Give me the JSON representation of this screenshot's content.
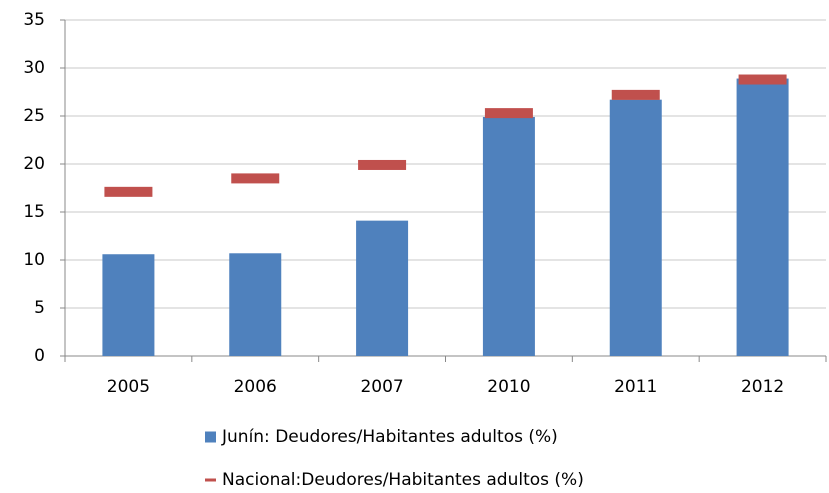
{
  "chart_data": {
    "type": "bar",
    "categories": [
      "2005",
      "2006",
      "2007",
      "2010",
      "2011",
      "2012"
    ],
    "series": [
      {
        "name": "Junín: Deudores/Habitantes adultos (%)",
        "color": "#4f81bd",
        "values": [
          10.6,
          10.7,
          14.1,
          24.9,
          26.7,
          28.9
        ]
      },
      {
        "name": "Nacional:Deudores/Habitantes adultos (%)",
        "color": "#c0504d",
        "marker": "dash",
        "values": [
          17.1,
          18.5,
          19.9,
          25.3,
          27.2,
          28.8
        ]
      }
    ],
    "ylim": [
      0,
      35
    ],
    "yticks": [
      0,
      5,
      10,
      15,
      20,
      25,
      30,
      35
    ],
    "grid": true,
    "legend": "bottom"
  }
}
